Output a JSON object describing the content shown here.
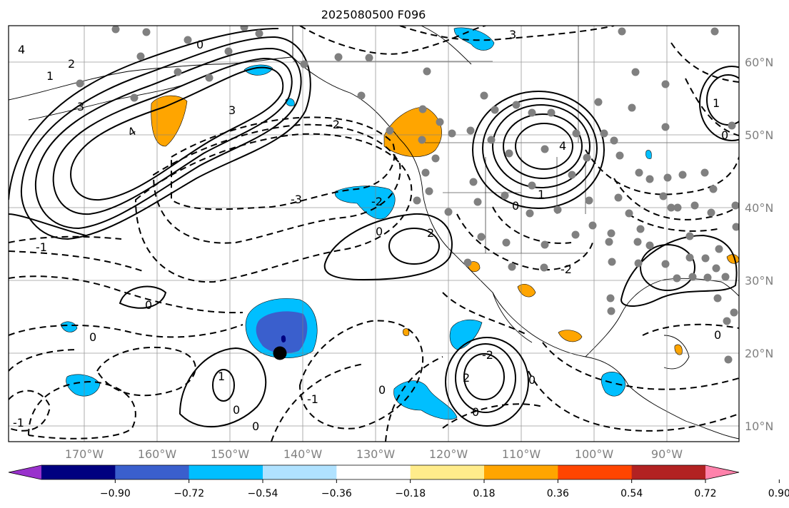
{
  "title": "2025080500 F096",
  "map": {
    "lon_ticks": [
      "170°W",
      "160°W",
      "150°W",
      "140°W",
      "130°W",
      "120°W",
      "110°W",
      "100°W",
      "90°W"
    ],
    "lat_ticks": [
      "60°N",
      "50°N",
      "40°N",
      "30°N",
      "20°N",
      "10°N"
    ],
    "contour_labels": [
      "0",
      "1",
      "2",
      "3",
      "4",
      "-1",
      "-2",
      "-3"
    ],
    "marker": "storm position (black dot)"
  },
  "colorbar": {
    "colors": [
      "#9932cc",
      "#000080",
      "#3a5fcd",
      "#00bfff",
      "#b0e2ff",
      "#ffffff",
      "#ffec8b",
      "#ffa500",
      "#ff4500",
      "#b22222",
      "#ff82ab"
    ],
    "tick_labels": [
      "−0.90",
      "−0.72",
      "−0.54",
      "−0.36",
      "−0.18",
      "0.18",
      "0.36",
      "0.54",
      "0.72",
      "0.90"
    ]
  }
}
